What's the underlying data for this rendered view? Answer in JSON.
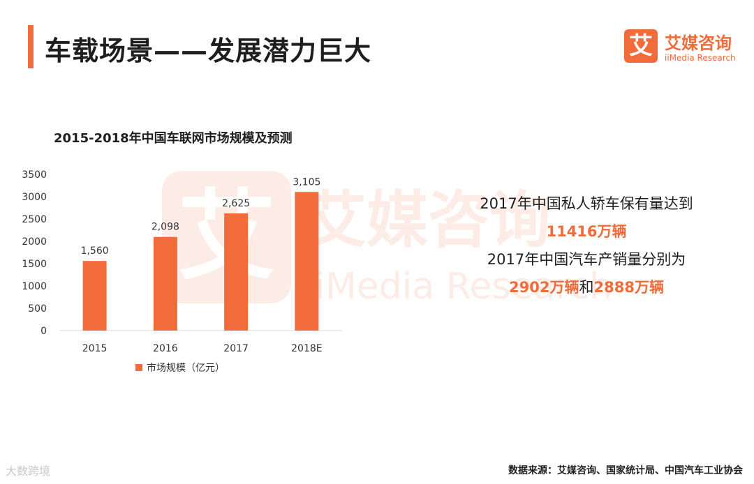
{
  "page": {
    "title": "车载场景——发展潜力巨大",
    "accent": "#f26b3a"
  },
  "logo": {
    "mark": "艾",
    "name_cn": "艾媒咨询",
    "name_en": "iiMedia Research"
  },
  "watermark": {
    "mark": "艾",
    "name_cn": "艾媒咨询",
    "name_en": "iiMedia Research"
  },
  "chart_data": {
    "type": "bar",
    "title": "2015-2018年中国车联网市场规模及预测",
    "categories": [
      "2015",
      "2016",
      "2017",
      "2018E"
    ],
    "series": [
      {
        "name": "市场规模（亿元）",
        "values": [
          1560,
          2098,
          2625,
          3105
        ],
        "labels": [
          "1,560",
          "2,098",
          "2,625",
          "3,105"
        ],
        "color": "#f26b3a"
      }
    ],
    "ylim": [
      0,
      3500
    ],
    "yticks": [
      0,
      500,
      1000,
      1500,
      2000,
      2500,
      3000,
      3500
    ],
    "grid": false,
    "legend": "bottom"
  },
  "highlights": {
    "line1": "2017年中国私人轿车保有量达到",
    "line2": "11416万辆",
    "line3": "2017年中国汽车产销量分别为",
    "line4a": "2902万辆",
    "line4b": "和",
    "line4c": "2888万辆"
  },
  "footer": {
    "source": "数据来源：艾媒咨询、国家统计局、中国汽车工业协会",
    "corner_mark": "大数跨境"
  }
}
